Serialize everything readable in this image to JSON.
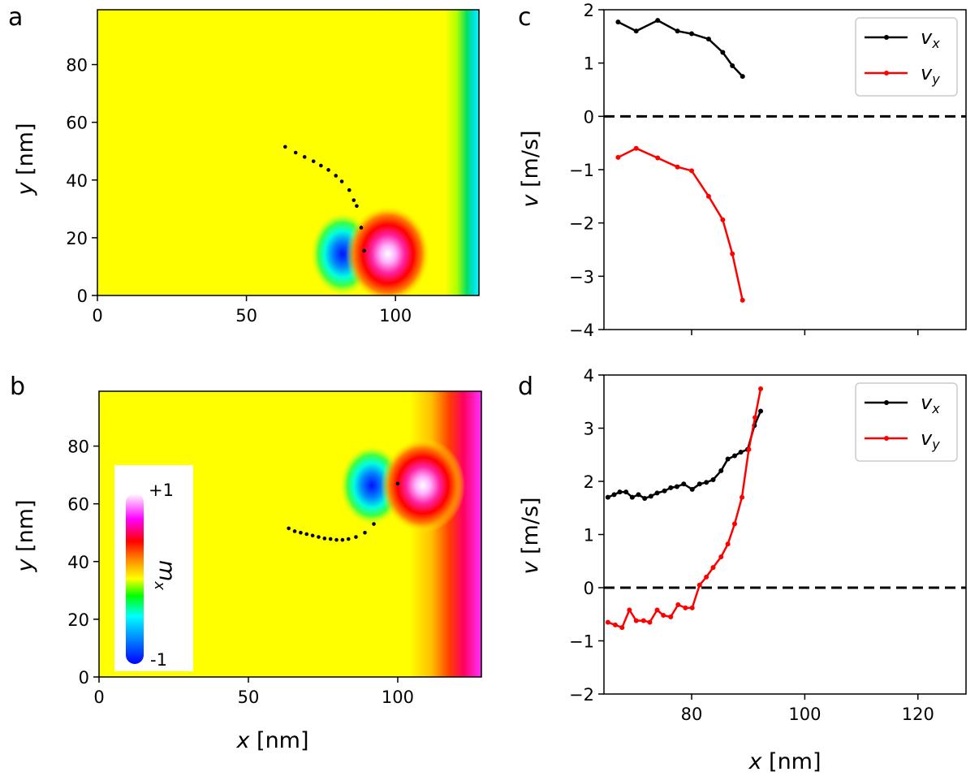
{
  "panel_labels": {
    "a": "a",
    "b": "b",
    "c": "c",
    "d": "d"
  },
  "chart_data": [
    {
      "id": "a",
      "type": "heatmap",
      "xlabel_var": "x",
      "xlabel_unit": " [nm]",
      "ylabel_var": "y",
      "ylabel_unit": " [nm]",
      "xlim": [
        0,
        128
      ],
      "ylim": [
        0,
        99
      ],
      "xticks": [
        0,
        50,
        100
      ],
      "yticks": [
        0,
        20,
        40,
        60,
        80
      ],
      "colormap": "m_x hue (-1 blue ... +1 white)",
      "trajectory": [
        [
          63,
          51.5
        ],
        [
          66.5,
          49.5
        ],
        [
          69.5,
          48
        ],
        [
          72.5,
          46.5
        ],
        [
          75,
          45
        ],
        [
          77.5,
          43.5
        ],
        [
          80,
          41.5
        ],
        [
          82,
          39.5
        ],
        [
          84.5,
          36.5
        ],
        [
          86,
          33
        ],
        [
          87,
          31
        ],
        [
          88.5,
          23.5
        ],
        [
          89.5,
          15.5
        ]
      ]
    },
    {
      "id": "b",
      "type": "heatmap",
      "xlabel_var": "x",
      "xlabel_unit": " [nm]",
      "ylabel_var": "y",
      "ylabel_unit": " [nm]",
      "xlim": [
        0,
        128
      ],
      "ylim": [
        0,
        99
      ],
      "xticks": [
        0,
        50,
        100
      ],
      "yticks": [
        0,
        20,
        40,
        60,
        80
      ],
      "colorbar": {
        "label": "m",
        "sub": "x",
        "max_label": "+1",
        "min_label": "-1"
      },
      "trajectory": [
        [
          63.5,
          51.5
        ],
        [
          65.5,
          50.5
        ],
        [
          67.5,
          50
        ],
        [
          69.5,
          49.5
        ],
        [
          71.5,
          49
        ],
        [
          73.5,
          48.5
        ],
        [
          75.5,
          48
        ],
        [
          77.5,
          47.8
        ],
        [
          79.5,
          47.5
        ],
        [
          81.5,
          47.5
        ],
        [
          83.5,
          47.8
        ],
        [
          86,
          48.5
        ],
        [
          89,
          50
        ],
        [
          92,
          53
        ],
        [
          100,
          67
        ]
      ]
    },
    {
      "id": "c",
      "type": "line",
      "ylabel_var": "v",
      "ylabel_unit": " [m/s]",
      "xlim": [
        64.5,
        128.5
      ],
      "ylim": [
        -4,
        2
      ],
      "xticks": [
        80,
        100,
        120
      ],
      "show_xticklabels": false,
      "yticks": [
        -4,
        -3,
        -2,
        -1,
        0,
        1,
        2
      ],
      "zero_line": true,
      "series": [
        {
          "name": "v",
          "sub": "x",
          "color": "#000000",
          "x": [
            67,
            70.2,
            74,
            77.5,
            80,
            83,
            85.5,
            87.2,
            89
          ],
          "y": [
            1.77,
            1.6,
            1.8,
            1.6,
            1.55,
            1.45,
            1.2,
            0.95,
            0.75
          ]
        },
        {
          "name": "v",
          "sub": "y",
          "color": "#ff0000",
          "x": [
            67,
            70.2,
            74,
            77.5,
            80,
            83,
            85.5,
            87.2,
            89
          ],
          "y": [
            -0.77,
            -0.6,
            -0.78,
            -0.95,
            -1.02,
            -1.5,
            -1.94,
            -2.58,
            -3.45
          ]
        }
      ]
    },
    {
      "id": "d",
      "type": "line",
      "xlabel_var": "x",
      "xlabel_unit": " [nm]",
      "ylabel_var": "v",
      "ylabel_unit": " [m/s]",
      "xlim": [
        64.5,
        128.5
      ],
      "ylim": [
        -2,
        4
      ],
      "xticks": [
        80,
        100,
        120
      ],
      "show_xticklabels": true,
      "yticks": [
        -2,
        -1,
        0,
        1,
        2,
        3,
        4
      ],
      "zero_line": true,
      "series": [
        {
          "name": "v",
          "sub": "x",
          "color": "#000000",
          "x": [
            65.2,
            66.3,
            67.3,
            68.4,
            69.5,
            70.6,
            71.7,
            72.8,
            73.9,
            75.2,
            76.3,
            77.4,
            78.6,
            80.1,
            81.4,
            82.6,
            83.8,
            85.2,
            86.4,
            87.6,
            88.7,
            89.9,
            91.1,
            92.2
          ],
          "y": [
            1.7,
            1.75,
            1.8,
            1.8,
            1.7,
            1.75,
            1.68,
            1.72,
            1.78,
            1.82,
            1.88,
            1.9,
            1.95,
            1.85,
            1.95,
            1.98,
            2.03,
            2.2,
            2.42,
            2.48,
            2.55,
            2.6,
            3.05,
            3.32
          ]
        },
        {
          "name": "v",
          "sub": "y",
          "color": "#ff0000",
          "x": [
            65.2,
            66.5,
            67.7,
            69,
            70.2,
            71.5,
            72.6,
            73.9,
            75,
            76.3,
            77.6,
            78.9,
            80.1,
            81.4,
            82.6,
            83.8,
            85.2,
            86.4,
            87.6,
            88.9,
            90.1,
            91.2,
            92.2
          ],
          "y": [
            -0.65,
            -0.7,
            -0.75,
            -0.42,
            -0.62,
            -0.62,
            -0.65,
            -0.42,
            -0.52,
            -0.55,
            -0.32,
            -0.38,
            -0.38,
            0.05,
            0.2,
            0.38,
            0.58,
            0.82,
            1.2,
            1.7,
            2.6,
            3.2,
            3.74
          ]
        }
      ]
    }
  ]
}
